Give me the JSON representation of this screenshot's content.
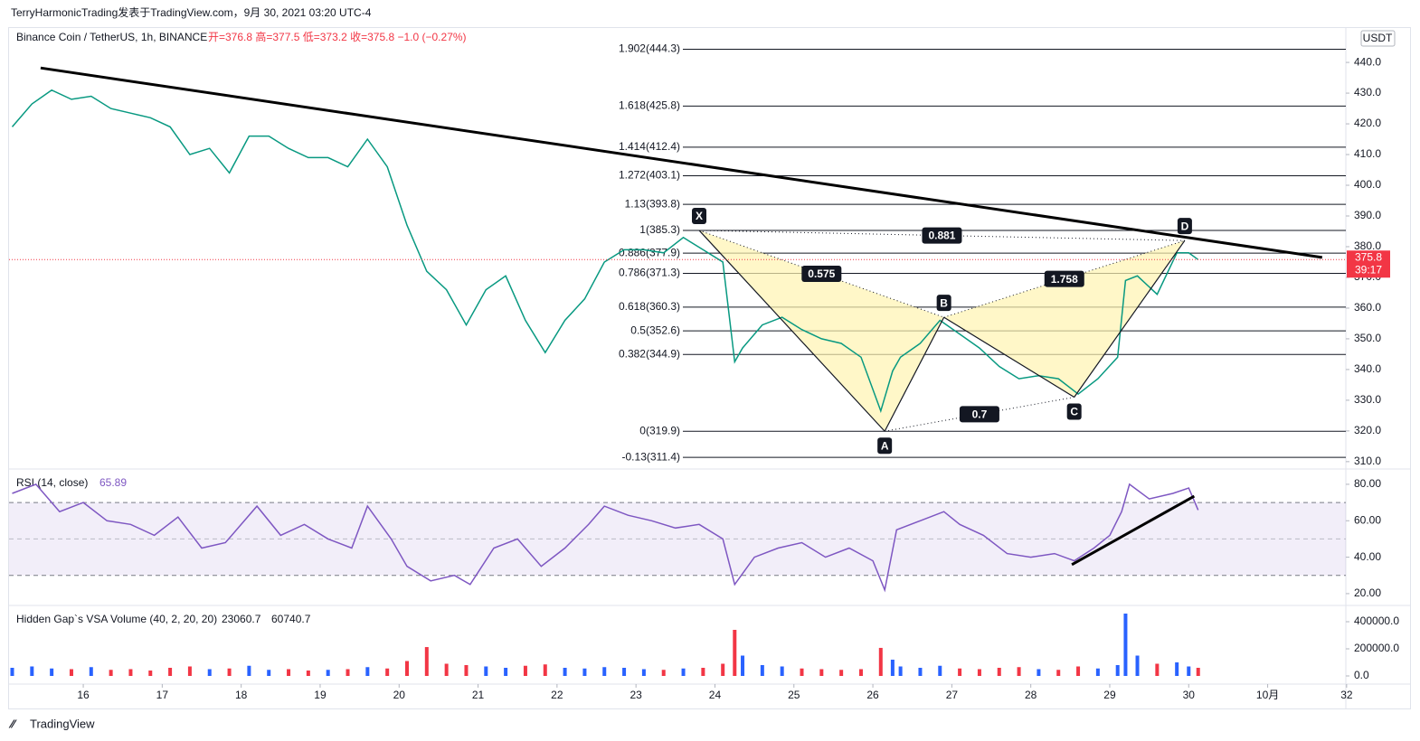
{
  "header": {
    "author_line": "TerryHarmonicTrading发表于TradingView.com，9月 30, 2021 03:20 UTC-4",
    "currency": "USDT"
  },
  "footer": {
    "brand": "TradingView"
  },
  "chart_data": [
    {
      "type": "line",
      "title": "Binance Coin / TetherUS, 1h, BINANCE",
      "quote": "开=376.8 高=377.5 低=373.2 收=375.8 −1.0 (−0.27%)",
      "color": "#089981",
      "last_price": 375.8,
      "last_color": "#f23645",
      "countdown": "39:17",
      "x": [
        15.1,
        15.35,
        15.6,
        15.85,
        16.1,
        16.35,
        16.6,
        16.85,
        17.1,
        17.35,
        17.6,
        17.85,
        18.1,
        18.35,
        18.6,
        18.85,
        19.1,
        19.35,
        19.6,
        19.85,
        20.1,
        20.35,
        20.6,
        20.85,
        21.1,
        21.35,
        21.6,
        21.85,
        22.1,
        22.35,
        22.6,
        22.85,
        23.1,
        23.35,
        23.6,
        23.85,
        24.1,
        24.25,
        24.35,
        24.6,
        24.85,
        25.1,
        25.35,
        25.6,
        25.85,
        26.1,
        26.25,
        26.35,
        26.6,
        26.85,
        27.1,
        27.35,
        27.6,
        27.85,
        28.1,
        28.35,
        28.6,
        28.85,
        29.1,
        29.2,
        29.35,
        29.6,
        29.85,
        30.0,
        30.12
      ],
      "values": [
        419,
        426.5,
        431,
        428,
        429,
        425,
        423.5,
        422,
        419,
        410,
        412,
        404,
        416,
        416,
        412,
        409,
        409,
        406,
        415,
        406,
        387,
        372,
        366,
        354.5,
        366,
        370.5,
        356,
        345.5,
        356,
        363,
        375,
        379,
        379,
        378,
        383,
        379,
        375,
        342.5,
        347,
        354.5,
        357,
        353,
        350,
        348.5,
        344,
        326.5,
        339.5,
        344,
        348.5,
        356,
        351.5,
        347,
        341,
        337,
        338,
        337,
        332,
        337,
        344,
        369,
        370.5,
        364.5,
        378,
        378,
        375.8
      ],
      "xlim": [
        15.06,
        31.99
      ],
      "xticks": [
        16,
        17,
        18,
        19,
        20,
        21,
        22,
        23,
        24,
        25,
        26,
        27,
        28,
        29,
        30,
        {
          "value": 31,
          "label": "10月"
        },
        32
      ],
      "ylim": [
        307.9,
        451.5
      ],
      "yticks": [
        {
          "value": 310,
          "label": "310.0"
        },
        {
          "value": 320,
          "label": "320.0"
        },
        {
          "value": 330,
          "label": "330.0"
        },
        {
          "value": 340,
          "label": "340.0"
        },
        {
          "value": 350,
          "label": "350.0"
        },
        {
          "value": 360,
          "label": "360.0"
        },
        {
          "value": 370,
          "label": "370.0"
        },
        {
          "value": 380,
          "label": "380.0"
        },
        {
          "value": 390,
          "label": "390.0"
        },
        {
          "value": 400,
          "label": "400.0"
        },
        {
          "value": 410,
          "label": "410.0"
        },
        {
          "value": 420,
          "label": "420.0"
        },
        {
          "value": 430,
          "label": "430.0"
        },
        {
          "value": 440,
          "label": "440.0"
        }
      ],
      "fib_levels": [
        {
          "label": "1.902(444.3)",
          "value": 444.3
        },
        {
          "label": "1.618(425.8)",
          "value": 425.8
        },
        {
          "label": "1.414(412.4)",
          "value": 412.4
        },
        {
          "label": "1.272(403.1)",
          "value": 403.1
        },
        {
          "label": "1.13(393.8)",
          "value": 393.8
        },
        {
          "label": "1(385.3)",
          "value": 385.3
        },
        {
          "label": "0.886(377.9)",
          "value": 377.9
        },
        {
          "label": "0.786(371.3)",
          "value": 371.3
        },
        {
          "label": "0.618(360.3)",
          "value": 360.3
        },
        {
          "label": "0.5(352.6)",
          "value": 352.6
        },
        {
          "label": "0.382(344.9)",
          "value": 344.9
        },
        {
          "label": "0(319.9)",
          "value": 319.9
        },
        {
          "label": "-0.13(311.4)",
          "value": 311.4
        }
      ],
      "pattern": {
        "points": [
          {
            "label": "X",
            "x": 23.8,
            "y": 385.3
          },
          {
            "label": "A",
            "x": 26.15,
            "y": 319.9
          },
          {
            "label": "B",
            "x": 26.9,
            "y": 357
          },
          {
            "label": "C",
            "x": 28.55,
            "y": 331
          },
          {
            "label": "D",
            "x": 29.95,
            "y": 382
          }
        ],
        "ratios": [
          0.575,
          0.881,
          1.758,
          0.7
        ]
      },
      "trendline": {
        "x": [
          15.46,
          31.69
        ],
        "y": [
          438.2,
          376.5
        ]
      }
    },
    {
      "type": "line",
      "title": "RSI (14, close)",
      "last_value": 65.89,
      "color": "#7e57c2",
      "band": [
        30,
        70
      ],
      "midline": 50,
      "x": [
        15.1,
        15.4,
        15.7,
        16.0,
        16.3,
        16.6,
        16.9,
        17.2,
        17.5,
        17.8,
        18.0,
        18.2,
        18.5,
        18.8,
        19.1,
        19.4,
        19.6,
        19.9,
        20.1,
        20.4,
        20.7,
        20.9,
        21.2,
        21.5,
        21.8,
        22.1,
        22.4,
        22.6,
        22.9,
        23.2,
        23.5,
        23.8,
        24.1,
        24.25,
        24.5,
        24.8,
        25.1,
        25.4,
        25.7,
        26.0,
        26.15,
        26.3,
        26.6,
        26.9,
        27.1,
        27.4,
        27.7,
        28.0,
        28.3,
        28.55,
        28.8,
        29.0,
        29.15,
        29.25,
        29.5,
        29.8,
        30.0,
        30.12
      ],
      "values": [
        75,
        80,
        65,
        70,
        60,
        58,
        52,
        62,
        45,
        48,
        58,
        68,
        52,
        58,
        50,
        45,
        68,
        50,
        35,
        27,
        30,
        25,
        45,
        50,
        35,
        45,
        58,
        68,
        63,
        60,
        56,
        58,
        50,
        25,
        40,
        45,
        48,
        40,
        45,
        38,
        22,
        55,
        60,
        65,
        58,
        52,
        42,
        40,
        42,
        38,
        45,
        52,
        65,
        80,
        72,
        75,
        78,
        65.89
      ],
      "ylim": [
        14.5,
        87.9
      ],
      "yticks": [
        {
          "value": 20,
          "label": "20.00"
        },
        {
          "value": 40,
          "label": "40.00"
        },
        {
          "value": 60,
          "label": "60.00"
        },
        {
          "value": 80,
          "label": "80.00"
        }
      ],
      "trendline": {
        "x": [
          28.52,
          30.07
        ],
        "y": [
          35.9,
          73.5
        ]
      }
    },
    {
      "type": "bar",
      "title": "Hidden Gap`s VSA Volume (40, 2, 20, 20)",
      "indicator_values": [
        23060.7,
        60740.7
      ],
      "up_color": "#2962ff",
      "down_color": "#f23645",
      "x": [
        15.1,
        15.35,
        15.6,
        15.85,
        16.1,
        16.35,
        16.6,
        16.85,
        17.1,
        17.35,
        17.6,
        17.85,
        18.1,
        18.35,
        18.6,
        18.85,
        19.1,
        19.35,
        19.6,
        19.85,
        20.1,
        20.35,
        20.6,
        20.85,
        21.1,
        21.35,
        21.6,
        21.85,
        22.1,
        22.35,
        22.6,
        22.85,
        23.1,
        23.35,
        23.6,
        23.85,
        24.1,
        24.25,
        24.35,
        24.6,
        24.85,
        25.1,
        25.35,
        25.6,
        25.85,
        26.1,
        26.25,
        26.35,
        26.6,
        26.85,
        27.1,
        27.35,
        27.6,
        27.85,
        28.1,
        28.35,
        28.6,
        28.85,
        29.1,
        29.2,
        29.35,
        29.6,
        29.85,
        30.0,
        30.12
      ],
      "values": [
        60000,
        70000,
        55000,
        50000,
        65000,
        45000,
        50000,
        40000,
        60000,
        70000,
        50000,
        55000,
        75000,
        45000,
        50000,
        40000,
        45000,
        50000,
        65000,
        55000,
        110000,
        213000,
        90000,
        80000,
        70000,
        60000,
        75000,
        85000,
        60000,
        55000,
        65000,
        60000,
        50000,
        45000,
        55000,
        60000,
        90000,
        340000,
        150000,
        80000,
        70000,
        55000,
        50000,
        45000,
        50000,
        207000,
        120000,
        70000,
        60000,
        75000,
        55000,
        50000,
        60000,
        65000,
        50000,
        45000,
        70000,
        55000,
        80000,
        460000,
        150000,
        90000,
        100000,
        70000,
        60000
      ],
      "ylim": [
        -60000,
        506667
      ],
      "yticks": [
        {
          "value": 0,
          "label": "0.0"
        },
        {
          "value": 200000,
          "label": "200000.0"
        },
        {
          "value": 400000,
          "label": "400000.0"
        }
      ]
    }
  ]
}
